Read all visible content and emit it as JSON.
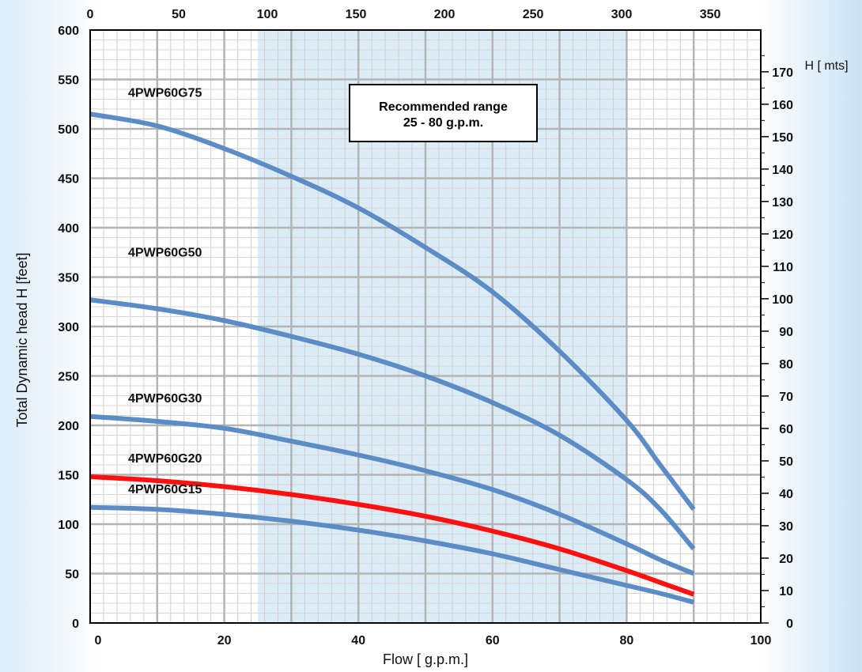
{
  "chart_data": {
    "type": "line",
    "title": "",
    "recommended_range": {
      "line1": "Recommended range",
      "line2": "25 - 80 g.p.m.",
      "from": 25,
      "to": 80
    },
    "xlabel": "Flow [ g.p.m.]",
    "ylabel": "Total Dynamic head H [feet]",
    "y2label": "H [ mts]",
    "xlim": [
      0,
      100
    ],
    "ylim": [
      0,
      600
    ],
    "x_ticks": [
      "0",
      "20",
      "40",
      "60",
      "80",
      "100"
    ],
    "x_tick_values": [
      0,
      20,
      40,
      60,
      80,
      100
    ],
    "y_ticks": [
      "0",
      "50",
      "100",
      "150",
      "200",
      "250",
      "300",
      "350",
      "400",
      "450",
      "500",
      "550",
      "600"
    ],
    "y_tick_values": [
      0,
      50,
      100,
      150,
      200,
      250,
      300,
      350,
      400,
      450,
      500,
      550,
      600
    ],
    "top_axis": {
      "unit_to_gpm": 0.26417,
      "ticks": [
        "0",
        "50",
        "100",
        "150",
        "200",
        "250",
        "300",
        "350"
      ],
      "tick_values": [
        0,
        50,
        100,
        150,
        200,
        250,
        300,
        350
      ]
    },
    "right_axis": {
      "m_to_ft": 3.28084,
      "ticks": [
        "0",
        "10",
        "20",
        "30",
        "40",
        "50",
        "60",
        "70",
        "80",
        "90",
        "100",
        "110",
        "120",
        "130",
        "140",
        "150",
        "160",
        "170"
      ],
      "tick_values": [
        0,
        10,
        20,
        30,
        40,
        50,
        60,
        70,
        80,
        90,
        100,
        110,
        120,
        130,
        140,
        150,
        160,
        170
      ]
    },
    "series": [
      {
        "name": "4PWP60G75",
        "color": "#5b8cc6",
        "x": [
          0,
          10,
          20,
          30,
          40,
          50,
          60,
          70,
          80,
          85,
          90
        ],
        "y": [
          515,
          503,
          480,
          452,
          420,
          380,
          335,
          275,
          205,
          160,
          115
        ]
      },
      {
        "name": "4PWP60G50",
        "color": "#5b8cc6",
        "x": [
          0,
          10,
          20,
          30,
          40,
          50,
          60,
          70,
          80,
          85,
          90
        ],
        "y": [
          327,
          318,
          306,
          290,
          272,
          250,
          223,
          190,
          145,
          115,
          75
        ]
      },
      {
        "name": "4PWP60G30",
        "color": "#5b8cc6",
        "x": [
          0,
          10,
          20,
          30,
          40,
          50,
          60,
          70,
          80,
          85,
          90
        ],
        "y": [
          209,
          204,
          197,
          184,
          170,
          154,
          135,
          110,
          80,
          64,
          50
        ]
      },
      {
        "name": "4PWP60G20",
        "color": "#ff1010",
        "x": [
          0,
          10,
          20,
          30,
          40,
          50,
          60,
          70,
          80,
          85,
          90
        ],
        "y": [
          148,
          144,
          138,
          130,
          120,
          108,
          93,
          75,
          53,
          41,
          29
        ]
      },
      {
        "name": "4PWP60G15",
        "color": "#5b8cc6",
        "x": [
          0,
          10,
          20,
          30,
          40,
          50,
          60,
          70,
          80,
          85,
          90
        ],
        "y": [
          117,
          115,
          110,
          103,
          94,
          83,
          70,
          54,
          38,
          30,
          21
        ]
      }
    ]
  }
}
